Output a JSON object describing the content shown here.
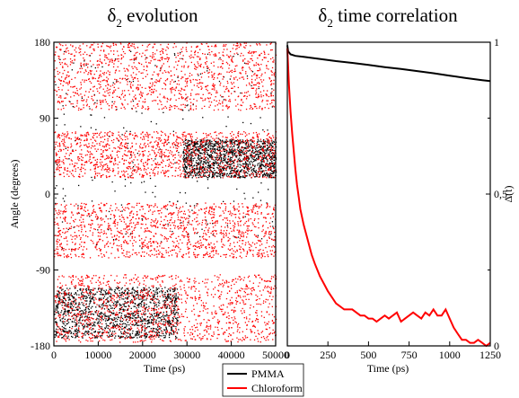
{
  "colors": {
    "pmma": "#000000",
    "chloroform": "#ff0000",
    "axis": "#000000",
    "background": "#ffffff"
  },
  "chart_data": [
    {
      "type": "scatter",
      "title": {
        "symbol": "δ",
        "subscript": "2",
        "rest": " evolution"
      },
      "xlabel": "Time (ps)",
      "ylabel": "Angle (degrees)",
      "xlim": [
        0,
        50000
      ],
      "ylim": [
        -180,
        180
      ],
      "x_ticks": [
        "0",
        "10000",
        "20000",
        "30000",
        "40000",
        "50000"
      ],
      "y_ticks": [
        "180",
        "90",
        "0",
        "-90",
        "-180"
      ],
      "grid": false,
      "series": [
        {
          "name": "PMMA",
          "color": "#000000",
          "bands": [
            {
              "x": [
                0,
                28000
              ],
              "y": [
                -170,
                -110
              ]
            },
            {
              "x": [
                29000,
                50000
              ],
              "y": [
                20,
                65
              ]
            },
            {
              "x": [
                0,
                50000
              ],
              "y": [
                -65,
                170
              ]
            }
          ]
        },
        {
          "name": "Chloroform",
          "color": "#ff0000",
          "bands": [
            {
              "x": [
                0,
                50000
              ],
              "y": [
                100,
                180
              ]
            },
            {
              "x": [
                0,
                50000
              ],
              "y": [
                20,
                75
              ]
            },
            {
              "x": [
                0,
                50000
              ],
              "y": [
                -75,
                -10
              ]
            },
            {
              "x": [
                0,
                50000
              ],
              "y": [
                -175,
                -95
              ]
            }
          ]
        }
      ]
    },
    {
      "type": "line",
      "title": {
        "symbol": "δ",
        "subscript": "2",
        "rest": " time correlation"
      },
      "xlabel": "Time (ps)",
      "ylabel": "Δ(t)",
      "y_axis_side": "right",
      "xlim": [
        0,
        1250
      ],
      "ylim": [
        0,
        1
      ],
      "x_ticks": [
        "0",
        "250",
        "500",
        "750",
        "1000",
        "1250"
      ],
      "y_ticks": [
        "1",
        "0,5",
        "0"
      ],
      "grid": false,
      "series": [
        {
          "name": "PMMA",
          "color": "#000000",
          "x": [
            0,
            5,
            20,
            50,
            100,
            200,
            300,
            400,
            500,
            600,
            700,
            800,
            900,
            1000,
            1100,
            1200,
            1250
          ],
          "y": [
            0.99,
            0.97,
            0.96,
            0.955,
            0.952,
            0.945,
            0.938,
            0.932,
            0.925,
            0.918,
            0.912,
            0.905,
            0.898,
            0.89,
            0.882,
            0.875,
            0.872
          ]
        },
        {
          "name": "Chloroform",
          "color": "#ff0000",
          "x": [
            0,
            10,
            20,
            30,
            40,
            50,
            60,
            70,
            80,
            100,
            120,
            150,
            170,
            200,
            230,
            250,
            275,
            300,
            325,
            350,
            375,
            400,
            425,
            450,
            475,
            500,
            525,
            550,
            575,
            600,
            625,
            650,
            675,
            700,
            725,
            750,
            775,
            800,
            825,
            850,
            875,
            900,
            925,
            950,
            975,
            1000,
            1025,
            1050,
            1075,
            1100,
            1125,
            1150,
            1175,
            1200,
            1225,
            1250
          ],
          "y": [
            0.98,
            0.86,
            0.77,
            0.7,
            0.64,
            0.58,
            0.53,
            0.49,
            0.45,
            0.4,
            0.36,
            0.3,
            0.27,
            0.23,
            0.2,
            0.18,
            0.16,
            0.14,
            0.13,
            0.12,
            0.12,
            0.12,
            0.11,
            0.1,
            0.1,
            0.09,
            0.09,
            0.08,
            0.09,
            0.1,
            0.09,
            0.1,
            0.11,
            0.08,
            0.09,
            0.1,
            0.11,
            0.1,
            0.09,
            0.11,
            0.1,
            0.12,
            0.1,
            0.1,
            0.12,
            0.09,
            0.06,
            0.04,
            0.02,
            0.02,
            0.01,
            0.01,
            0.02,
            0.01,
            0.0,
            0.01
          ]
        }
      ]
    }
  ],
  "legend": {
    "placement": "bottom-center",
    "entries": [
      {
        "label": "PMMA",
        "color": "#000000"
      },
      {
        "label": "Chloroform",
        "color": "#ff0000"
      }
    ]
  }
}
